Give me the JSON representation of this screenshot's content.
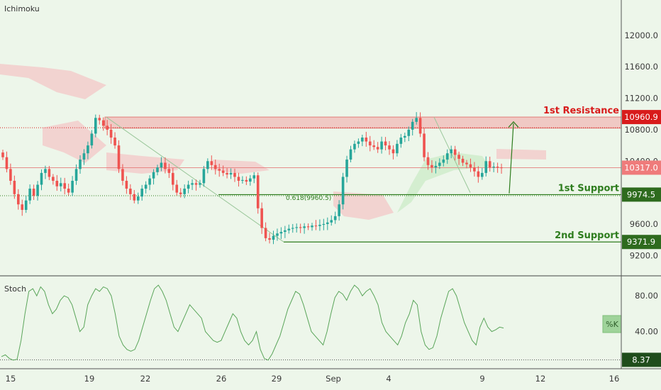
{
  "indicators": {
    "main_pane_label": "Ichimoku",
    "sub_pane_label": "Stoch",
    "stoch_k_label": "%K"
  },
  "colors": {
    "background": "#edf6ea",
    "candle_up": "#26a69a",
    "candle_down": "#ef5350",
    "resistance": "#d81b1b",
    "support": "#2e7d1e",
    "stoch_line": "#5aa55a",
    "cloud_red": "#f4c4c4",
    "cloud_green": "#c9ebc5"
  },
  "chart_data": [
    {
      "type": "candlestick",
      "title": "",
      "x_tick_labels": [
        "15",
        "19",
        "22",
        "26",
        "29",
        "Sep",
        "4",
        "9",
        "12",
        "16"
      ],
      "y_ticks": [
        9200,
        9600,
        10000,
        10400,
        10800,
        11200,
        11600,
        12000
      ],
      "y_tick_labels": [
        "9200.0",
        "9600.0",
        "",
        "10400.0",
        "10800.0",
        "11200.0",
        "11600.0",
        "12000.0"
      ],
      "ylim": [
        8950,
        12450
      ],
      "grid": false,
      "levels": [
        {
          "name": "1st Resistance",
          "price": 10960.9,
          "label": "10960.9",
          "zone_low": 10820,
          "zone_high": 10960.9
        },
        {
          "name": "1st Support",
          "price": 9974.5,
          "label": "9974.5"
        },
        {
          "name": "2nd Support",
          "price": 9371.9,
          "label": "9371.9"
        }
      ],
      "current_price": {
        "price": 10317.0,
        "label": "10317.0"
      },
      "fib_annotation": {
        "text": "0.618(9960.5)",
        "price": 9960.5
      },
      "closes": [
        10450,
        10300,
        10150,
        9980,
        9850,
        9780,
        9900,
        10050,
        9960,
        10100,
        10250,
        10300,
        10200,
        10150,
        10080,
        10120,
        10050,
        10000,
        10150,
        10300,
        10420,
        10500,
        10600,
        10750,
        10950,
        10920,
        10850,
        10800,
        10700,
        10600,
        10300,
        10150,
        10050,
        9980,
        9900,
        9950,
        10050,
        10100,
        10180,
        10260,
        10320,
        10380,
        10300,
        10250,
        10100,
        10000,
        9980,
        10050,
        10100,
        10120,
        10100,
        10120,
        10300,
        10400,
        10350,
        10300,
        10280,
        10250,
        10230,
        10250,
        10200,
        10150,
        10160,
        10140,
        10180,
        10220,
        9800,
        9550,
        9420,
        9400,
        9450,
        9480,
        9500,
        9520,
        9540,
        9550,
        9560,
        9550,
        9570,
        9560,
        9580,
        9575,
        9590,
        9600,
        9620,
        9650,
        9700,
        9850,
        10200,
        10420,
        10550,
        10620,
        10650,
        10700,
        10650,
        10600,
        10580,
        10550,
        10650,
        10600,
        10550,
        10500,
        10620,
        10700,
        10720,
        10800,
        10900,
        10950,
        10750,
        10450,
        10350,
        10320,
        10340,
        10380,
        10420,
        10500,
        10550,
        10480,
        10430,
        10380,
        10360,
        10320,
        10270,
        10200,
        10250,
        10400,
        10320,
        10330,
        10320,
        10317
      ]
    },
    {
      "type": "line",
      "name": "Stoch %K",
      "y_ticks": [
        40,
        80
      ],
      "y_tick_labels": [
        "40.00",
        "80.00"
      ],
      "ylim": [
        0,
        100
      ],
      "oversold_level": 8.37,
      "oversold_label": "8.37",
      "values": [
        12,
        14,
        10,
        8,
        9,
        30,
        60,
        85,
        88,
        80,
        90,
        85,
        70,
        60,
        65,
        75,
        80,
        78,
        70,
        55,
        40,
        45,
        70,
        80,
        88,
        85,
        90,
        88,
        80,
        60,
        35,
        25,
        20,
        18,
        20,
        30,
        45,
        60,
        75,
        88,
        92,
        85,
        75,
        60,
        45,
        40,
        50,
        60,
        70,
        65,
        60,
        55,
        40,
        35,
        30,
        28,
        30,
        40,
        50,
        60,
        55,
        40,
        30,
        25,
        30,
        40,
        20,
        10,
        8,
        15,
        25,
        35,
        50,
        65,
        75,
        85,
        82,
        70,
        55,
        40,
        35,
        30,
        25,
        40,
        60,
        78,
        85,
        82,
        75,
        85,
        92,
        88,
        80,
        85,
        88,
        80,
        70,
        50,
        40,
        35,
        30,
        25,
        35,
        50,
        60,
        75,
        70,
        40,
        25,
        20,
        22,
        35,
        55,
        70,
        85,
        88,
        80,
        65,
        50,
        40,
        30,
        25,
        45,
        55,
        45,
        40,
        42,
        45,
        44
      ]
    }
  ]
}
